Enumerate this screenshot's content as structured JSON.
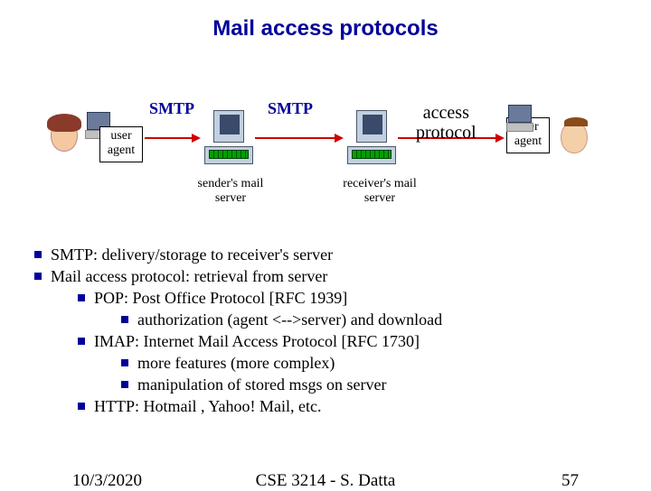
{
  "title": "Mail access protocols",
  "colors": {
    "title": "#000099",
    "bullet": "#000099",
    "arrow": "#d00000",
    "server_body": "#c0d0e0",
    "server_led": "#00a000"
  },
  "diagram": {
    "ua_left": "user\nagent",
    "ua_right": "user\nagent",
    "smtp1": "SMTP",
    "smtp2": "SMTP",
    "access": "access\nprotocol",
    "sender_label": "sender's mail\nserver",
    "receiver_label": "receiver's mail\nserver"
  },
  "bullets": [
    {
      "text": "SMTP: delivery/storage to receiver's server"
    },
    {
      "text": "Mail access protocol: retrieval from server",
      "children": [
        {
          "text": "POP: Post Office Protocol [RFC 1939]",
          "children": [
            {
              "text": "authorization (agent <-->server) and download"
            }
          ]
        },
        {
          "text": "IMAP: Internet Mail Access Protocol [RFC 1730]",
          "children": [
            {
              "text": "more features (more complex)"
            },
            {
              "text": "manipulation of stored msgs on server"
            }
          ]
        },
        {
          "text": "HTTP: Hotmail , Yahoo! Mail, etc."
        }
      ]
    }
  ],
  "footer": {
    "date": "10/3/2020",
    "center": "CSE 3214 - S. Datta",
    "page": "57"
  }
}
